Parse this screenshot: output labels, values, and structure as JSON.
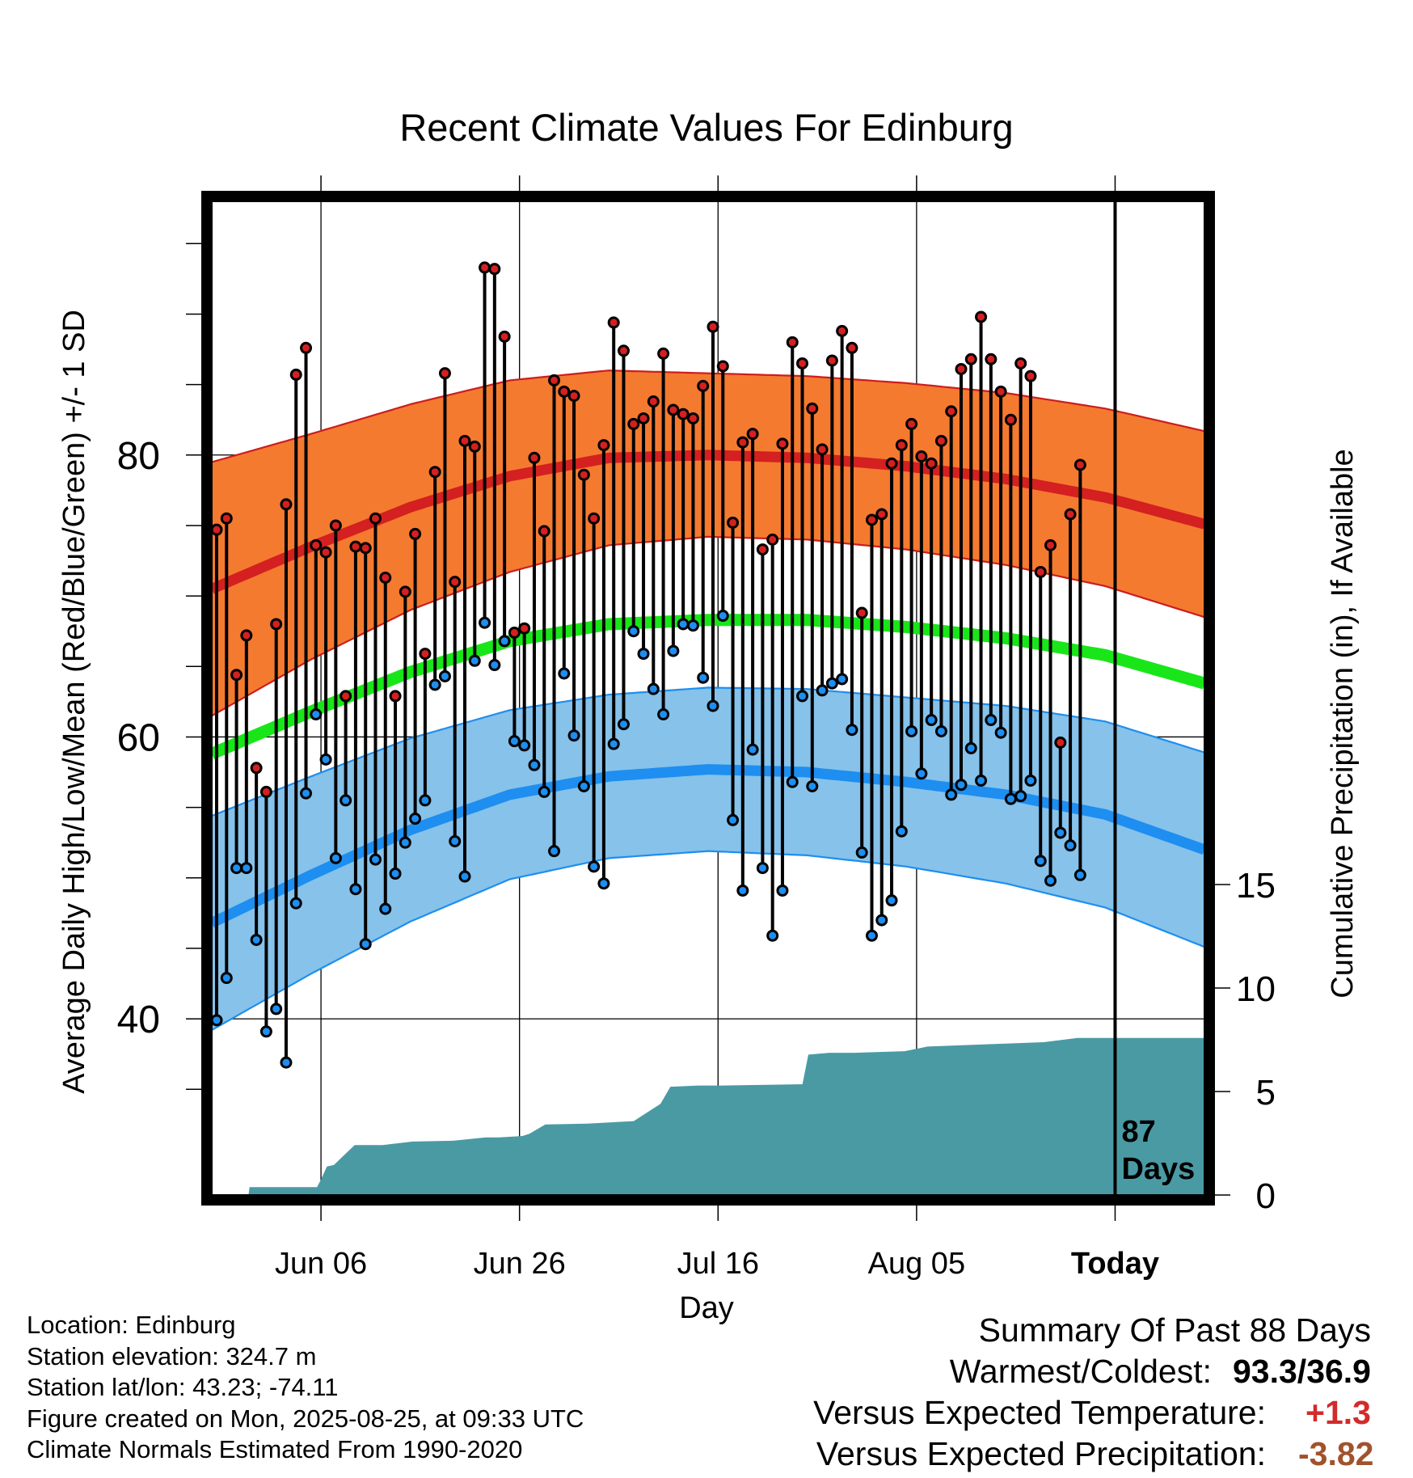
{
  "chart_data": {
    "type": "line",
    "title": "Recent Climate Values For Edinburg",
    "xlabel": "Day",
    "ylabel": "Average Daily High/Low/Mean (Red/Blue/Green) +/- 1 SD",
    "y2label": "Cumulative Precipitation (in), If Available",
    "x_tick_labels": [
      "Jun 06",
      "Jun 26",
      "Jul 16",
      "Aug 05",
      "Today"
    ],
    "x_tick_days": [
      11,
      31,
      51,
      71,
      91
    ],
    "x_range_days": [
      0,
      100
    ],
    "ylim": [
      27.5,
      98
    ],
    "y_ticks": [
      40,
      60,
      80
    ],
    "y2lim": [
      0,
      48
    ],
    "y2_ticks": [
      0,
      5,
      10,
      15
    ],
    "today_day": 91,
    "days_annotation": [
      "87",
      "Days"
    ],
    "grid": true,
    "colors": {
      "high_band": "#f47a30",
      "high_mean": "#d42020",
      "high_edge": "#cc1d1d",
      "low_band": "#86c2ea",
      "low_mean": "#1e8ef0",
      "low_edge": "#1e8ef0",
      "mean": "#19e619",
      "precip": "#4a9aa4",
      "high_dot": "#d42020",
      "low_dot": "#1e8ef0"
    },
    "normals": {
      "day": [
        0,
        10,
        20,
        30,
        40,
        50,
        60,
        70,
        80,
        90,
        100
      ],
      "high_mean": [
        70.5,
        73.5,
        76.3,
        78.5,
        79.8,
        80.0,
        79.8,
        79.2,
        78.3,
        77.0,
        75.1
      ],
      "high_sd": [
        9.0,
        8.0,
        7.3,
        6.8,
        6.2,
        5.8,
        5.8,
        5.9,
        6.1,
        6.3,
        6.6
      ],
      "low_mean": [
        46.8,
        50.2,
        53.4,
        55.9,
        57.2,
        57.7,
        57.5,
        56.8,
        55.9,
        54.5,
        52.0
      ],
      "low_sd": [
        7.6,
        7.0,
        6.5,
        6.0,
        5.8,
        5.8,
        5.9,
        6.0,
        6.3,
        6.6,
        6.9
      ],
      "mean": [
        58.8,
        61.8,
        64.6,
        66.8,
        68.0,
        68.3,
        68.3,
        67.8,
        67.0,
        65.8,
        63.8
      ]
    },
    "daily": {
      "day": [
        0,
        1,
        2,
        3,
        4,
        5,
        6,
        7,
        8,
        9,
        10,
        11,
        12,
        13,
        14,
        15,
        16,
        17,
        18,
        19,
        20,
        21,
        22,
        23,
        24,
        25,
        26,
        27,
        28,
        29,
        30,
        31,
        32,
        33,
        34,
        35,
        36,
        37,
        38,
        39,
        40,
        41,
        42,
        43,
        44,
        45,
        46,
        47,
        48,
        49,
        50,
        51,
        52,
        53,
        54,
        55,
        56,
        57,
        58,
        59,
        60,
        61,
        62,
        63,
        64,
        65,
        66,
        67,
        68,
        69,
        70,
        71,
        72,
        73,
        74,
        75,
        76,
        77,
        78,
        79,
        80,
        81,
        82,
        83,
        84,
        85,
        86,
        87
      ],
      "high": [
        74.7,
        75.5,
        64.4,
        67.2,
        57.8,
        56.1,
        68.0,
        76.5,
        85.7,
        87.6,
        73.6,
        73.1,
        75.0,
        62.9,
        73.5,
        73.4,
        75.5,
        71.3,
        62.9,
        70.3,
        74.4,
        65.9,
        78.8,
        85.8,
        71.0,
        81.0,
        80.6,
        93.3,
        93.2,
        88.4,
        67.4,
        67.7,
        79.8,
        74.6,
        85.3,
        84.5,
        84.2,
        78.6,
        75.5,
        80.7,
        89.4,
        87.4,
        82.2,
        82.6,
        83.8,
        87.2,
        83.2,
        82.9,
        82.6,
        84.9,
        89.1,
        86.3,
        75.2,
        80.9,
        81.5,
        73.3,
        74.0,
        80.8,
        88.0,
        86.5,
        83.3,
        80.4,
        86.7,
        88.8,
        87.6,
        68.8,
        75.4,
        75.8,
        79.4,
        80.7,
        82.2,
        79.9,
        79.4,
        81.0,
        83.1,
        86.1,
        86.8,
        89.8,
        86.8,
        84.5,
        82.5,
        86.5,
        85.6,
        71.7,
        73.6,
        59.6,
        75.8,
        79.3
      ],
      "low": [
        39.9,
        42.9,
        50.7,
        50.7,
        45.6,
        39.1,
        40.7,
        36.9,
        48.2,
        56.0,
        61.6,
        58.4,
        51.4,
        55.5,
        49.2,
        45.3,
        51.3,
        47.8,
        50.3,
        52.5,
        54.2,
        55.5,
        63.7,
        64.3,
        52.6,
        50.1,
        65.4,
        68.1,
        65.1,
        66.8,
        59.7,
        59.4,
        58.0,
        56.1,
        51.9,
        64.5,
        60.1,
        56.5,
        50.8,
        49.6,
        59.5,
        60.9,
        67.5,
        65.9,
        63.4,
        61.6,
        66.1,
        68.0,
        67.9,
        64.2,
        62.2,
        68.6,
        54.1,
        49.1,
        59.1,
        50.7,
        45.9,
        49.1,
        56.8,
        62.9,
        56.5,
        63.3,
        63.8,
        64.1,
        60.5,
        51.8,
        45.9,
        47.0,
        48.4,
        53.3,
        60.4,
        57.4,
        61.2,
        60.4,
        55.9,
        56.6,
        59.2,
        56.9,
        61.2,
        60.3,
        55.6,
        55.8,
        56.9,
        51.2,
        49.8,
        53.2,
        52.3,
        50.2
      ]
    },
    "precip": {
      "day": [
        0,
        3.7,
        3.8,
        9.5,
        10.6,
        11.0,
        11.6,
        12.3,
        13.6,
        14.4,
        17.2,
        20.2,
        24.3,
        27.6,
        29.0,
        31.3,
        32.0,
        33.6,
        37.8,
        42.5,
        45.2,
        46.2,
        49.0,
        51.3,
        59.5,
        60.1,
        62.2,
        64.7,
        69.8,
        72.1,
        78.0,
        83.8,
        87.2,
        95.3,
        100
      ],
      "value": [
        0,
        0,
        0.38,
        0.38,
        0.38,
        0.75,
        1.38,
        1.45,
        2.05,
        2.41,
        2.41,
        2.58,
        2.62,
        2.78,
        2.78,
        2.85,
        2.96,
        3.41,
        3.45,
        3.57,
        4.4,
        5.23,
        5.29,
        5.29,
        5.35,
        6.78,
        6.87,
        6.87,
        6.95,
        7.17,
        7.28,
        7.38,
        7.59,
        7.59,
        7.59
      ]
    }
  },
  "footer": {
    "lines": [
      "Location: Edinburg",
      "Station elevation: 324.7 m",
      "Station lat/lon: 43.23; -74.11",
      "Figure created on Mon, 2025-08-25, at 09:33 UTC",
      "Climate Normals Estimated From 1990-2020"
    ]
  },
  "summary": {
    "title": "Summary Of Past 88 Days",
    "warmest_coldest_label": "Warmest/Coldest:",
    "warmest_coldest_value": "93.3/36.9",
    "temp_label": "Versus Expected Temperature:",
    "temp_value": "+1.3",
    "precip_label": "Versus Expected Precipitation:",
    "precip_value": "-3.82"
  }
}
